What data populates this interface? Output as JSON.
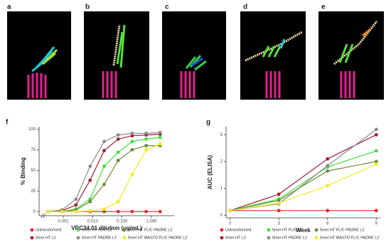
{
  "panels": [
    {
      "label": "a"
    },
    {
      "label": "b"
    },
    {
      "label": "c"
    },
    {
      "label": "d"
    },
    {
      "label": "e"
    }
  ],
  "chart_data": [
    {
      "type": "line",
      "panel_label": "f",
      "x_label": "VRC34.01 dilution (μg/mL)",
      "y_label": "% Binding",
      "xscale": "log",
      "grid": false,
      "x": [
        0.0003,
        0.0009,
        0.0027,
        0.0082,
        0.0247,
        0.074,
        0.222,
        0.667,
        2
      ],
      "xlim": [
        0.00015,
        6
      ],
      "xticks": [
        0.001,
        {
          "value": 0.01,
          "label": "0.010"
        },
        {
          "value": 0.1,
          "label": "0.100"
        },
        {
          "value": 1,
          "label": "1.000"
        }
      ],
      "ylim": [
        -5,
        103
      ],
      "yticks": [
        0,
        25,
        50,
        75,
        100
      ],
      "series": [
        {
          "name": "Untransformed",
          "color": "#e8262a",
          "values": [
            0,
            0,
            0,
            0,
            0,
            0,
            0,
            0,
            0
          ]
        },
        {
          "name": "5mer HT L2",
          "color": "#a31d35",
          "values": [
            0,
            1,
            8,
            38,
            74,
            88,
            92,
            93,
            94
          ]
        },
        {
          "name": "5mer HT FLIC L2",
          "color": "#3ee03a",
          "values": [
            0,
            0,
            3,
            15,
            55,
            72,
            85,
            88,
            90
          ]
        },
        {
          "name": "5mer HT PADRE L2",
          "color": "#8a8a8a",
          "values": [
            0,
            2,
            15,
            55,
            85,
            93,
            95,
            95,
            96
          ]
        },
        {
          "name": "5mer HT FLIC PADRE L2",
          "color": "#6b8a3a",
          "values": [
            0,
            0,
            2,
            12,
            33,
            62,
            75,
            80,
            80
          ]
        },
        {
          "name": "5mer HT MASTO FLIC PADRE L2",
          "color": "#f2ea1a",
          "values": [
            0,
            0,
            0,
            1,
            3,
            12,
            45,
            75,
            82
          ]
        }
      ]
    },
    {
      "type": "line",
      "panel_label": "g",
      "x_label": "Week",
      "y_label": "AUC (ELISA)",
      "grid": false,
      "x": [
        0,
        3,
        6,
        9
      ],
      "xlim": [
        -0.25,
        9.25
      ],
      "xticks": [
        0,
        3,
        6,
        9
      ],
      "ylim": [
        -0.1,
        3.3
      ],
      "yticks": [
        0,
        1,
        2,
        3
      ],
      "series": [
        {
          "name": "Untransformed",
          "color": "#e8262a",
          "values": [
            0.17,
            0.17,
            0.17,
            0.17
          ]
        },
        {
          "name": "5mer HT L2",
          "color": "#a31d35",
          "values": [
            0.17,
            0.78,
            2.1,
            3.0
          ]
        },
        {
          "name": "5mer HT FLIC L2",
          "color": "#3ee03a",
          "values": [
            0.17,
            0.6,
            1.8,
            2.4
          ]
        },
        {
          "name": "5mer HT PADRE L2",
          "color": "#8a8a8a",
          "values": [
            0.17,
            0.42,
            1.85,
            3.2
          ]
        },
        {
          "name": "5mer HT FLIC PADRE L2",
          "color": "#6b8a3a",
          "values": [
            0.17,
            0.55,
            1.65,
            2.0
          ]
        },
        {
          "name": "5mer HT MASTO FLIC PADRE L2",
          "color": "#f2ea1a",
          "values": [
            0.17,
            0.45,
            1.1,
            1.9
          ]
        }
      ]
    }
  ]
}
